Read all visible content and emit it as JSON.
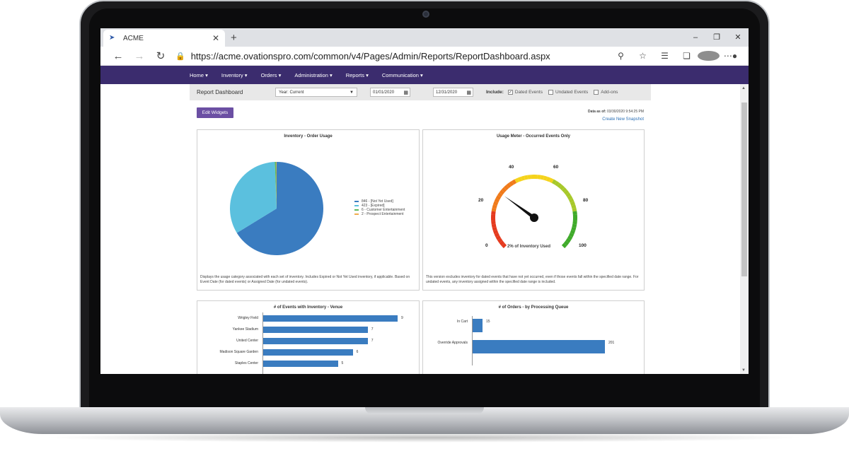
{
  "browser": {
    "tab_title": "ACME",
    "url": "https://acme.ovationspro.com/common/v4/Pages/Admin/Reports/ReportDashboard.aspx",
    "win_minimize": "–",
    "win_restore": "❐",
    "win_close": "✕"
  },
  "menu": {
    "items": [
      "Home ▾",
      "Inventory ▾",
      "Orders ▾",
      "Administration ▾",
      "Reports ▾",
      "Communication ▾"
    ]
  },
  "filters": {
    "title": "Report Dashboard",
    "year_select": "Year: Current",
    "start_date": "01/01/2020",
    "end_date": "12/31/2020",
    "include_label": "Include:",
    "dated_events": "Dated Events",
    "undated_events": "Undated Events",
    "addons": "Add-ons",
    "dated_checked": true
  },
  "toolbar": {
    "edit_widgets": "Edit Widgets",
    "data_asof_label": "Data as of:",
    "data_asof_value": "03/30/2020 9:54:25 PM",
    "create_snapshot": "Create New Snapshot"
  },
  "widgets": {
    "pie": {
      "title": "Inventory - Order Usage",
      "description": "Displays the usage category associated with each set of inventory. Includes Expired or Not Yet Used inventory, if applicable. Based on Event Date (for dated events) or Assigned Date (for undated events)."
    },
    "gauge": {
      "title": "Usage Meter - Occurred Events Only",
      "caption": "2% of Inventory Used",
      "ticks": [
        "0",
        "20",
        "40",
        "60",
        "80",
        "100"
      ],
      "description": "This version excludes inventory for dated events that have not yet occurred, even if those events fall within the specified date range. For undated events, any inventory assigned within the specified date range is included."
    },
    "venue_bar": {
      "title": "# of Events with Inventory - Venue"
    },
    "queue_bar": {
      "title": "# of Orders - by Processing Queue"
    }
  },
  "chart_data": [
    {
      "type": "pie",
      "title": "Inventory - Order Usage",
      "series": [
        {
          "name": "846 - [Not Yet Used]",
          "value": 846,
          "color": "#3a7cc0"
        },
        {
          "name": "423 - [Expired]",
          "value": 423,
          "color": "#5bc0de"
        },
        {
          "name": "6 - Customer Entertainment",
          "value": 6,
          "color": "#5cb85c"
        },
        {
          "name": "2 - Prospect Entertainment",
          "value": 2,
          "color": "#f0ad4e"
        }
      ],
      "legend": "right"
    },
    {
      "type": "gauge",
      "title": "Usage Meter - Occurred Events Only",
      "value": 2,
      "min": 0,
      "max": 100,
      "label": "2% of Inventory Used"
    },
    {
      "type": "bar",
      "orientation": "horizontal",
      "title": "# of Events with Inventory - Venue",
      "categories": [
        "Wrigley Field",
        "Yankee Stadium",
        "United Center",
        "Madison Square Garden",
        "Staples Center"
      ],
      "values": [
        9,
        7,
        7,
        6,
        5
      ],
      "color": "#3a7cc0"
    },
    {
      "type": "bar",
      "orientation": "horizontal",
      "title": "# of Orders - by Processing Queue",
      "categories": [
        "In Cart",
        "Override Approvals"
      ],
      "values": [
        15,
        201
      ],
      "color": "#3a7cc0"
    }
  ]
}
